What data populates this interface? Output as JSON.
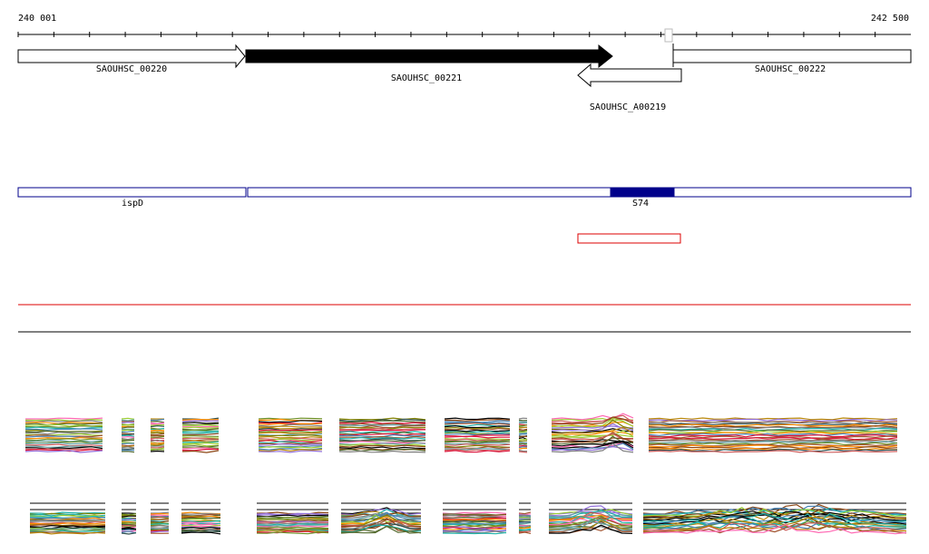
{
  "ruler": {
    "start_label": "240 001",
    "end_label": "242 500"
  },
  "genes": [
    {
      "name": "SAOUHSC_00220",
      "strand": "+",
      "fill": "#ffffff"
    },
    {
      "name": "SAOUHSC_00221",
      "strand": "+",
      "fill": "#000000"
    },
    {
      "name": "SAOUHSC_A00219",
      "strand": "-",
      "fill": "#ffffff"
    },
    {
      "name": "SAOUHSC_00222",
      "strand": "+",
      "fill": "#ffffff"
    }
  ],
  "annotation_track": {
    "color": "#00008b",
    "features": [
      {
        "name": "ispD"
      },
      {
        "name": "S74"
      }
    ]
  },
  "colors": {
    "ruler": "#000000",
    "highlight_box": "#dd0000",
    "separator_red": "#dd0000",
    "separator_black": "#000000"
  },
  "coverage_palette": [
    "#8b4513",
    "#6b8e23",
    "#4682b4",
    "#dc143c",
    "#9acd32",
    "#ff8c00",
    "#2f4f4f",
    "#9370db",
    "#20b2aa",
    "#000000",
    "#b8860b",
    "#808000",
    "#cd5c5c",
    "#556b2f",
    "#a0522d",
    "#ff69b4",
    "#5f9ea0",
    "#808080"
  ]
}
